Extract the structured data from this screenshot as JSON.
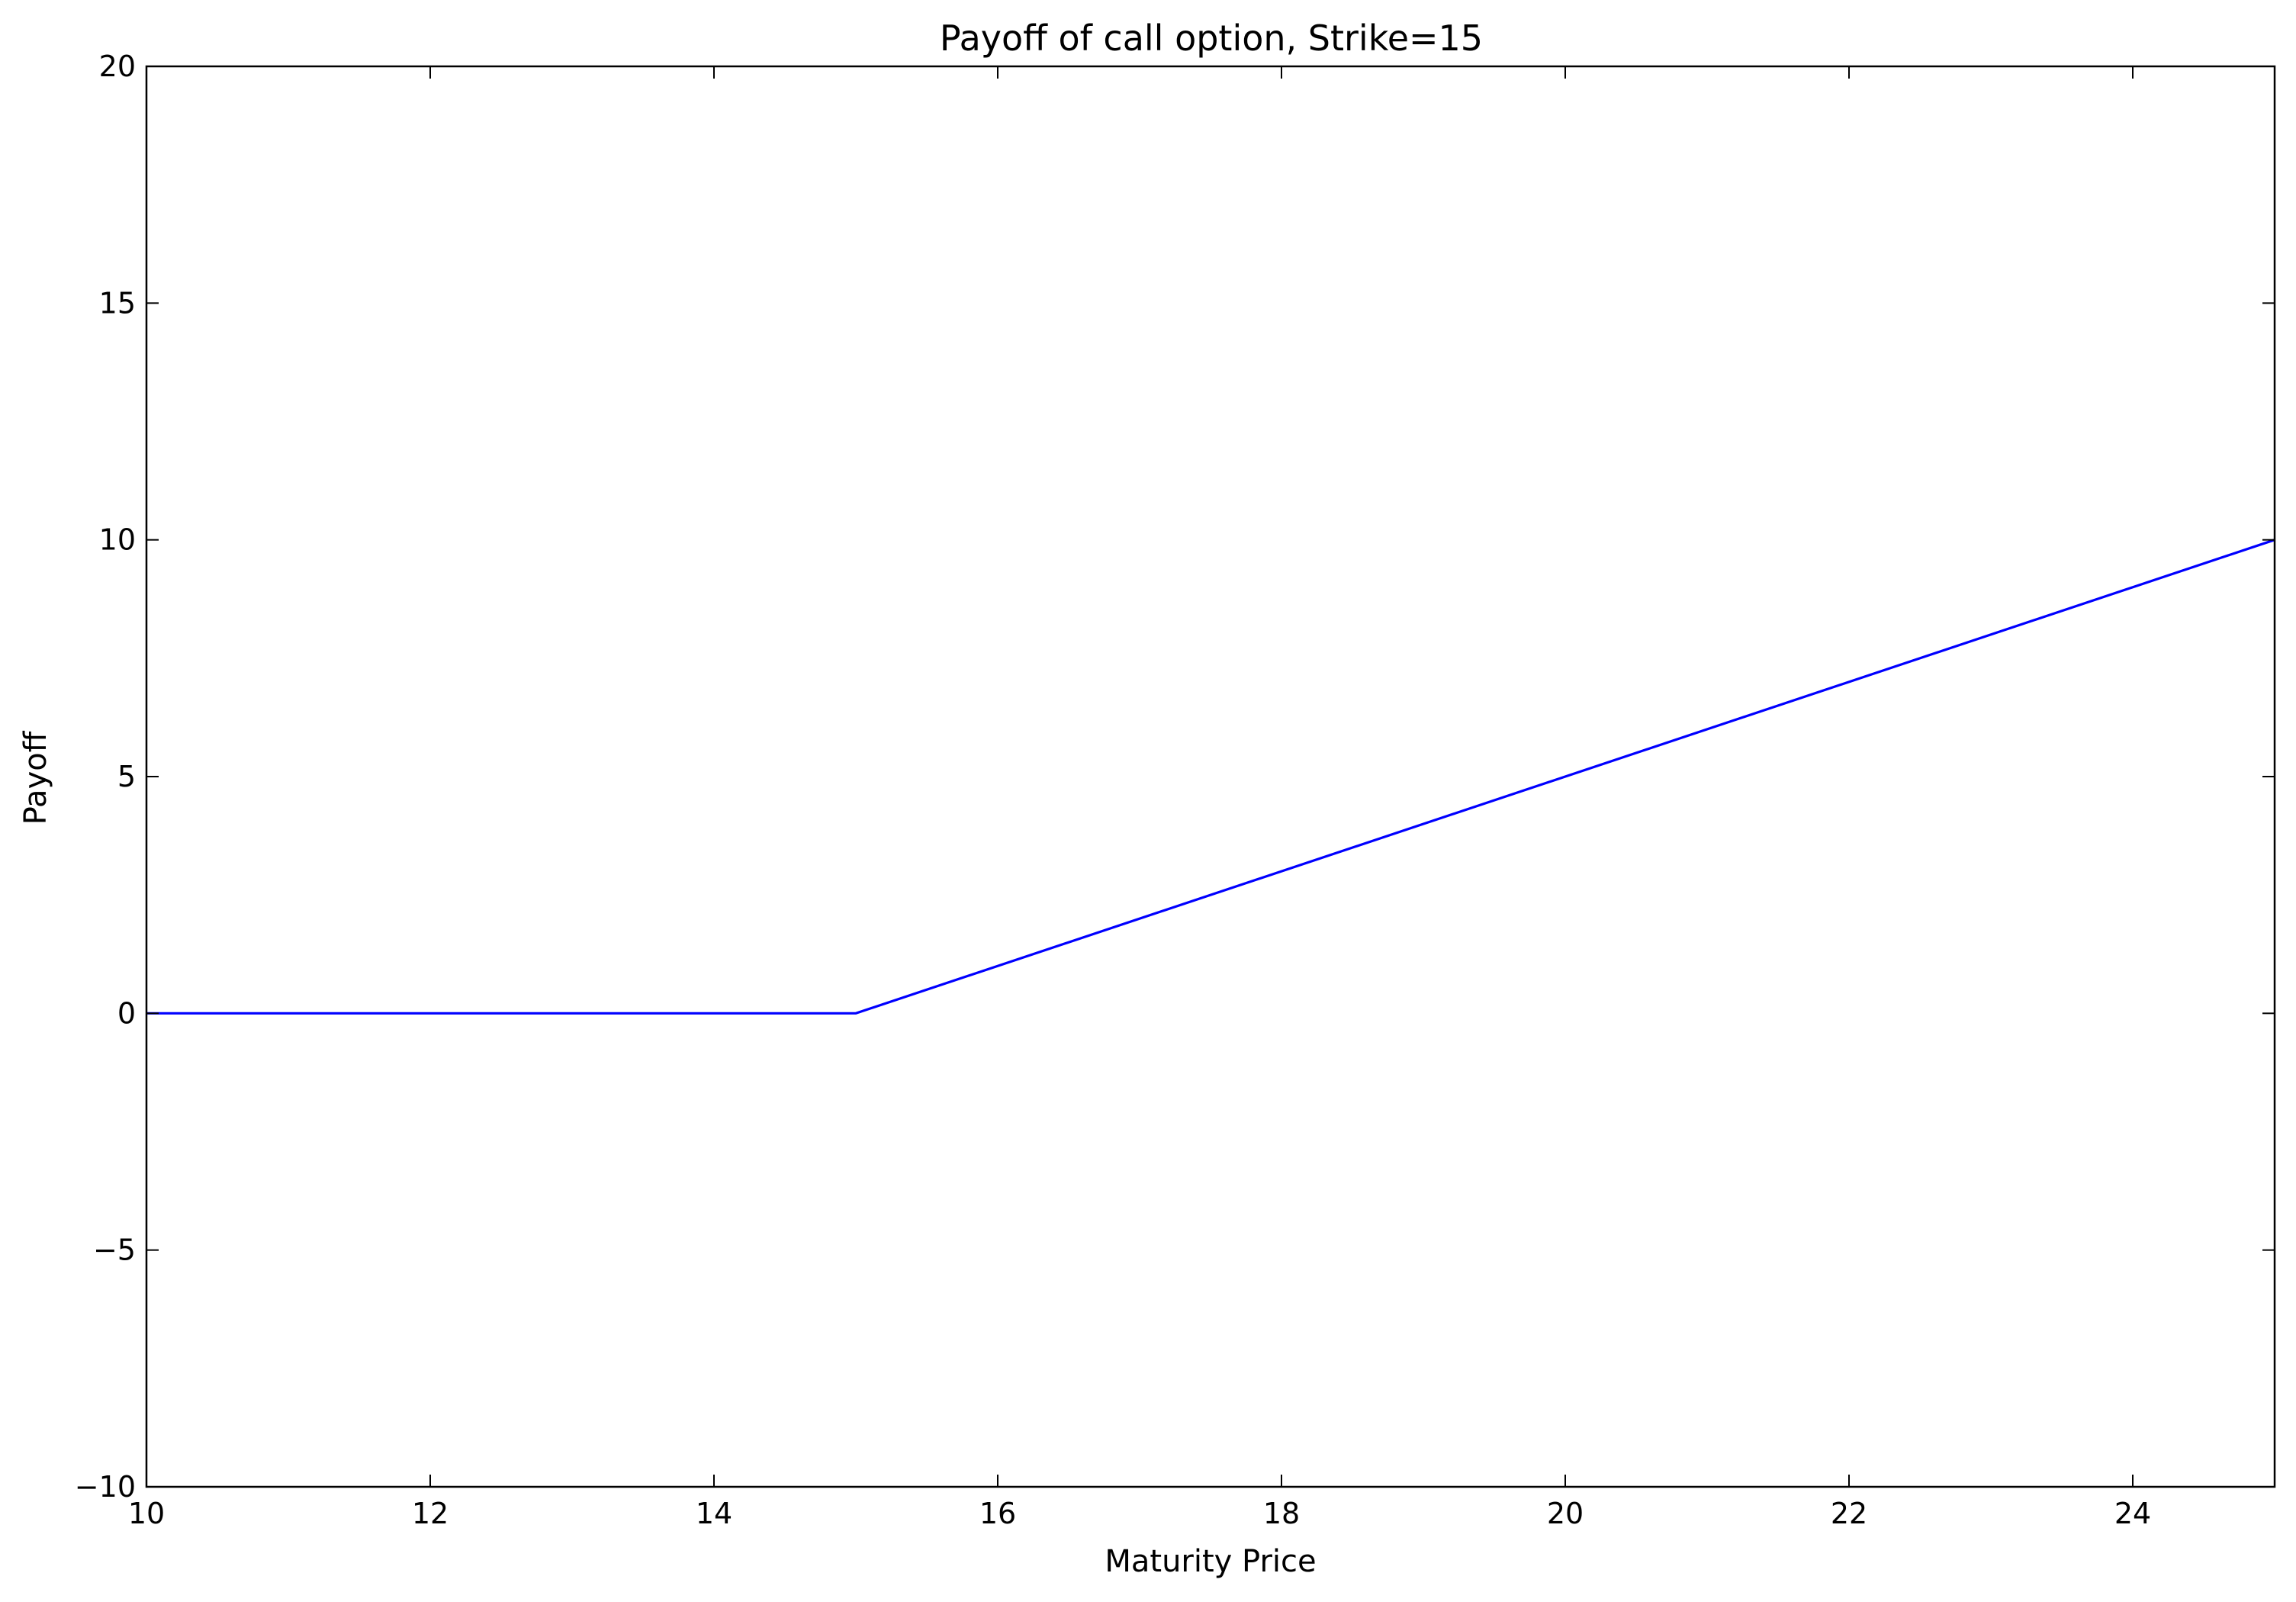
{
  "chart_data": {
    "type": "line",
    "title": "Payoff of call option, Strike=15",
    "xlabel": "Maturity Price",
    "ylabel": "Payoff",
    "xlim": [
      10,
      25
    ],
    "ylim": [
      -10,
      20
    ],
    "x_ticks": [
      10,
      12,
      14,
      16,
      18,
      20,
      22,
      24
    ],
    "y_ticks": [
      -10,
      -5,
      0,
      5,
      10,
      15,
      20
    ],
    "x_tick_labels": [
      "10",
      "12",
      "14",
      "16",
      "18",
      "20",
      "22",
      "24"
    ],
    "y_tick_labels": [
      "−10",
      "−5",
      "0",
      "5",
      "10",
      "15",
      "20"
    ],
    "grid": false,
    "legend": "none",
    "series": [
      {
        "color": "#0000ff",
        "x": [
          10,
          15,
          25
        ],
        "y": [
          0,
          0,
          10
        ]
      }
    ]
  }
}
